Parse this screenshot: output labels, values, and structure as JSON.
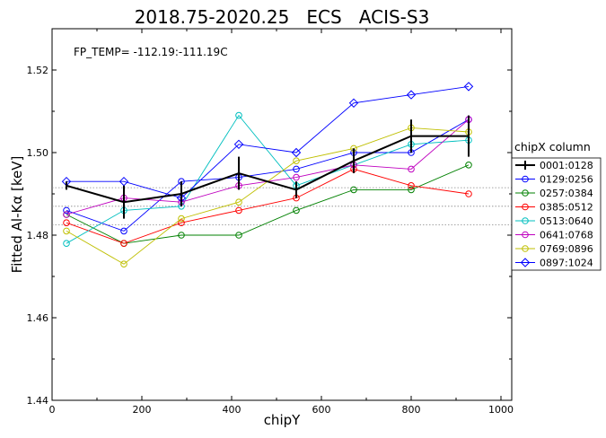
{
  "chart_data": {
    "type": "line",
    "title": "2018.75-2020.25   ECS   ACIS-S3",
    "annotation": "FP_TEMP= -112.19:-111.19C",
    "xlabel": "chipY",
    "ylabel": "Fitted Al-Kα [keV]",
    "xlim": [
      0,
      1024
    ],
    "ylim": [
      1.44,
      1.53
    ],
    "xticks": [
      0,
      200,
      400,
      600,
      800,
      1000
    ],
    "yticks": [
      1.44,
      1.46,
      1.48,
      1.5,
      1.52
    ],
    "ytick_labels": [
      "1.44",
      "1.46",
      "1.48",
      "1.50",
      "1.52"
    ],
    "grid": false,
    "reference_lines": [
      1.4915,
      1.487,
      1.4825
    ],
    "legend_title": "chipX column",
    "legend_position": "right",
    "x": [
      32,
      160,
      288,
      416,
      544,
      672,
      800,
      928
    ],
    "series": [
      {
        "name": "0001:0128",
        "color": "#000000",
        "marker": "errorbar",
        "values": [
          1.492,
          1.488,
          1.49,
          1.495,
          1.491,
          1.498,
          1.504,
          1.504
        ],
        "errors": [
          0.001,
          0.004,
          0.003,
          0.004,
          0.002,
          0.003,
          0.004,
          0.005
        ]
      },
      {
        "name": "0129:0256",
        "color": "#0000ff",
        "marker": "circle",
        "values": [
          1.486,
          1.481,
          1.493,
          1.494,
          1.496,
          1.5,
          1.5,
          1.508
        ]
      },
      {
        "name": "0257:0384",
        "color": "#008000",
        "marker": "circle",
        "values": [
          1.485,
          1.478,
          1.48,
          1.48,
          1.486,
          1.491,
          1.491,
          1.497
        ]
      },
      {
        "name": "0385:0512",
        "color": "#ff0000",
        "marker": "circle",
        "values": [
          1.483,
          1.478,
          1.483,
          1.486,
          1.489,
          1.496,
          1.492,
          1.49
        ]
      },
      {
        "name": "0513:0640",
        "color": "#00bfbf",
        "marker": "circle",
        "values": [
          1.478,
          1.486,
          1.487,
          1.509,
          1.492,
          1.497,
          1.502,
          1.503
        ]
      },
      {
        "name": "0641:0768",
        "color": "#bf00bf",
        "marker": "circle",
        "values": [
          1.485,
          1.489,
          1.488,
          1.492,
          1.494,
          1.497,
          1.496,
          1.508
        ]
      },
      {
        "name": "0769:0896",
        "color": "#bfbf00",
        "marker": "circle",
        "values": [
          1.481,
          1.473,
          1.484,
          1.488,
          1.498,
          1.501,
          1.506,
          1.505
        ]
      },
      {
        "name": "0897:1024",
        "color": "#0000ff",
        "marker": "diamond",
        "values": [
          1.493,
          1.493,
          1.489,
          1.502,
          1.5,
          1.512,
          1.514,
          1.516
        ]
      }
    ]
  }
}
